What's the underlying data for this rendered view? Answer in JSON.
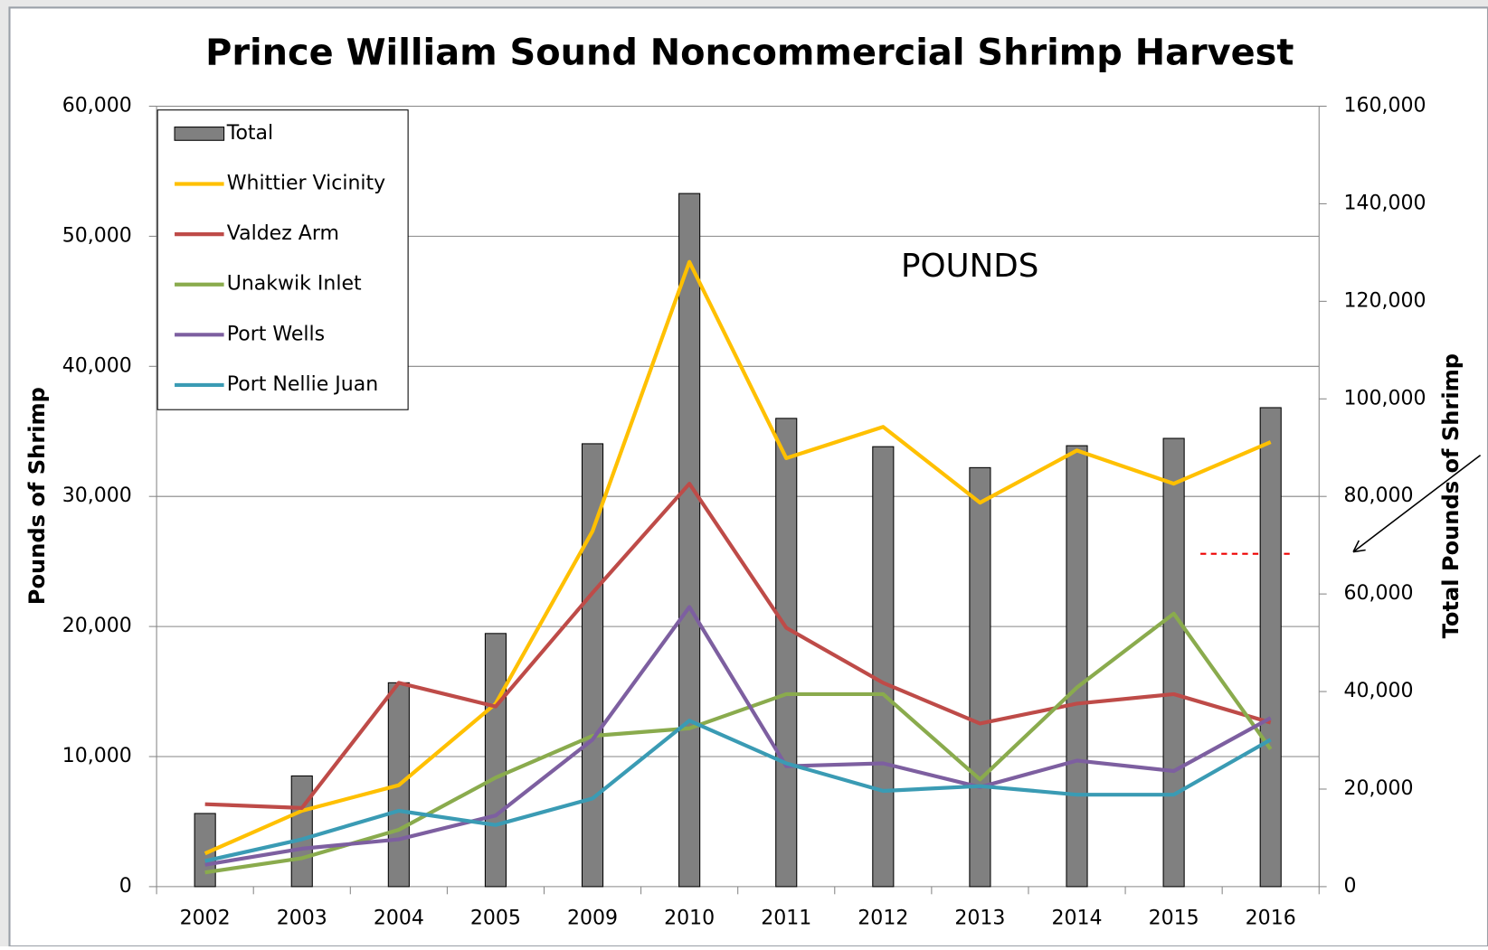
{
  "chart_data": {
    "type": "bar",
    "title": "Prince William Sound Noncommercial Shrimp Harvest",
    "ylabel": "Pounds of Shrimp",
    "y2label": "Total Pounds of Shrimp",
    "annotation": "POUNDS",
    "categories": [
      "2002",
      "2003",
      "2004",
      "2005",
      "2009",
      "2010",
      "2011",
      "2012",
      "2013",
      "2014",
      "2015",
      "2016"
    ],
    "series": [
      {
        "name": "Total",
        "type": "bar",
        "axis": "y2",
        "color": "#808080",
        "values": [
          15000,
          22700,
          41800,
          51900,
          90800,
          142100,
          96000,
          90200,
          85900,
          90400,
          91900,
          98200
        ]
      },
      {
        "name": "Whittier Vicinity",
        "type": "line",
        "color": "#ffc000",
        "values": [
          2550,
          5830,
          7800,
          14070,
          27330,
          48030,
          32940,
          35350,
          29520,
          33530,
          30980,
          34180
        ]
      },
      {
        "name": "Valdez Arm",
        "type": "line",
        "color": "#be4b48",
        "values": [
          6340,
          6050,
          15670,
          13850,
          22590,
          30980,
          19900,
          15670,
          12540,
          14070,
          14800,
          12610
        ]
      },
      {
        "name": "Unakwik Inlet",
        "type": "line",
        "color": "#8aab4d",
        "values": [
          1090,
          2190,
          4370,
          8380,
          11590,
          12170,
          14800,
          14800,
          8240,
          15310,
          20990,
          10570
        ]
      },
      {
        "name": "Port Wells",
        "type": "line",
        "color": "#7d5fa0",
        "values": [
          1680,
          2920,
          3640,
          5470,
          11300,
          21500,
          9260,
          9480,
          7650,
          9690,
          8890,
          12970
        ]
      },
      {
        "name": "Port Nellie Juan",
        "type": "line",
        "color": "#3a9bb4",
        "values": [
          1970,
          3640,
          5830,
          4740,
          6780,
          12760,
          9480,
          7360,
          7730,
          7070,
          7070,
          11300
        ]
      }
    ],
    "ylim": [
      0,
      60000
    ],
    "yticks": [
      0,
      {
        "value": 10000,
        "label": "10,000"
      },
      {
        "value": 20000,
        "label": "20,000"
      },
      {
        "value": 30000,
        "label": "30,000"
      },
      {
        "value": 40000,
        "label": "40,000"
      },
      {
        "value": 50000,
        "label": "50,000"
      },
      {
        "value": 60000,
        "label": "60,000"
      }
    ],
    "y2lim": [
      0,
      160000
    ],
    "y2ticks": [
      0,
      {
        "value": 20000,
        "label": "20,000"
      },
      {
        "value": 40000,
        "label": "40,000"
      },
      {
        "value": 60000,
        "label": "60,000"
      },
      {
        "value": 80000,
        "label": "80,000"
      },
      {
        "value": 100000,
        "label": "100,000"
      },
      {
        "value": 120000,
        "label": "120,000"
      },
      {
        "value": 140000,
        "label": "140,000"
      },
      {
        "value": 160000,
        "label": "160,000"
      }
    ],
    "grid": true,
    "legend": "upper left"
  }
}
